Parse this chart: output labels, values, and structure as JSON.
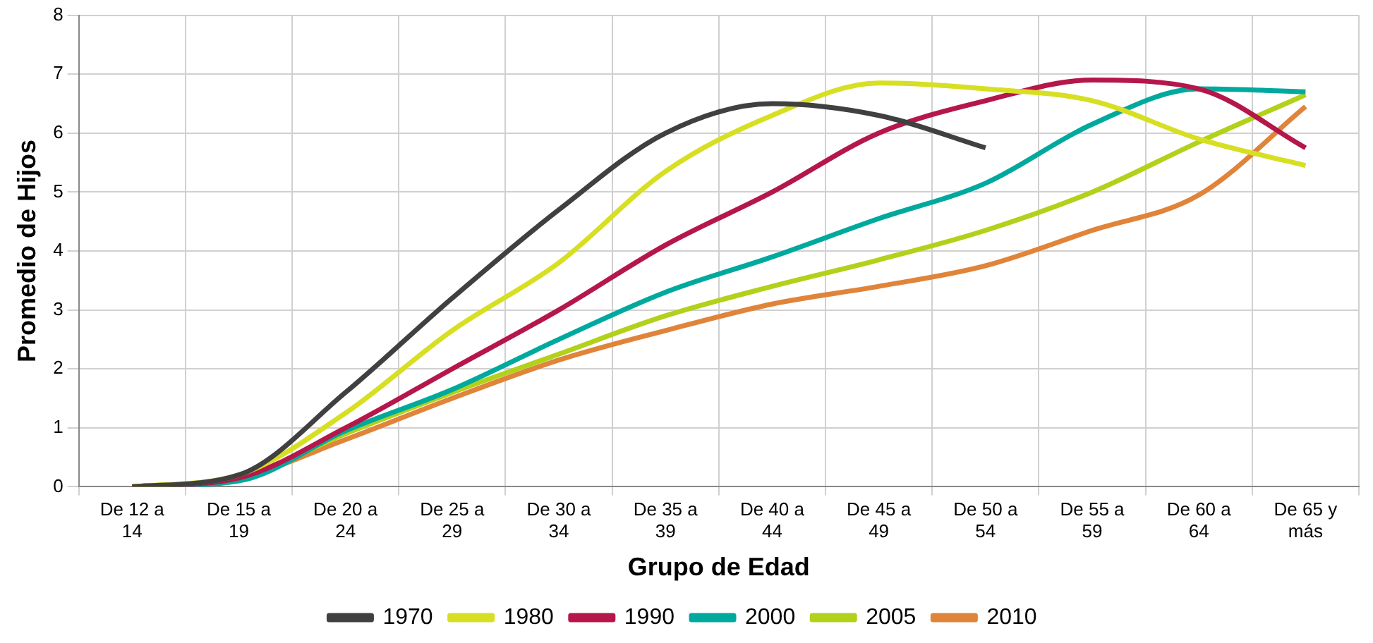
{
  "chart_data": {
    "type": "line",
    "xlabel": "Grupo de Edad",
    "ylabel": "Promedio de Hijos",
    "categories": [
      "De 12 a\n14",
      "De 15 a\n19",
      "De 20 a\n24",
      "De 25 a\n29",
      "De 30 a\n34",
      "De 35 a\n39",
      "De 40 a\n44",
      "De 45 a\n49",
      "De 50 a\n54",
      "De 55 a\n59",
      "De 60 a\n64",
      "De 65 y\nmás"
    ],
    "series": [
      {
        "name": "1970",
        "color": "#404040",
        "values": [
          0,
          0.2,
          1.6,
          3.2,
          4.7,
          6.0,
          6.5,
          6.3,
          5.75,
          null,
          null,
          null
        ]
      },
      {
        "name": "1980",
        "color": "#d7df23",
        "values": [
          0,
          0.2,
          1.25,
          2.65,
          3.8,
          5.35,
          6.3,
          6.85,
          6.75,
          6.55,
          5.9,
          5.45
        ]
      },
      {
        "name": "1990",
        "color": "#b5174a",
        "values": [
          0,
          0.15,
          1.0,
          2.0,
          3.0,
          4.1,
          5.0,
          6.0,
          6.55,
          6.9,
          6.75,
          5.75
        ]
      },
      {
        "name": "2000",
        "color": "#00a99d",
        "values": [
          0,
          0.1,
          0.95,
          1.65,
          2.5,
          3.3,
          3.9,
          4.55,
          5.15,
          6.15,
          6.75,
          6.7
        ]
      },
      {
        "name": "2005",
        "color": "#b2d11a",
        "values": [
          0,
          0.15,
          0.9,
          1.6,
          2.25,
          2.9,
          3.4,
          3.85,
          4.35,
          5.0,
          5.85,
          6.65
        ]
      },
      {
        "name": "2010",
        "color": "#e0843a",
        "values": [
          0,
          0.15,
          0.8,
          1.5,
          2.15,
          2.65,
          3.1,
          3.4,
          3.75,
          4.35,
          4.95,
          6.45
        ]
      }
    ],
    "ylim": [
      0,
      8
    ],
    "yticks": [
      0,
      1,
      2,
      3,
      4,
      5,
      6,
      7,
      8
    ],
    "grid": true,
    "legend": "bottom",
    "marker": "none",
    "line_style": "solid"
  }
}
